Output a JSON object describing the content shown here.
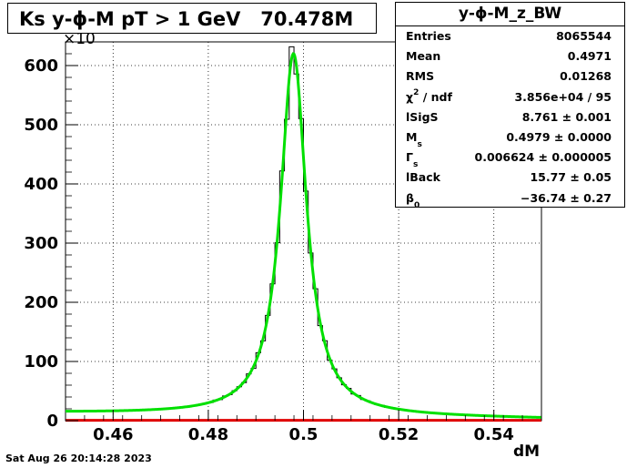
{
  "title": "Ks y-ϕ-M pT > 1 GeV   70.478M",
  "footer_timestamp": "Sat Aug 26 20:14:28 2023",
  "stats": {
    "name": "y-ϕ-M_z_BW",
    "rows": [
      {
        "key": "Entries",
        "value": "8065544"
      },
      {
        "key": "Mean",
        "value": "0.4971"
      },
      {
        "key": "RMS",
        "value": "0.01268"
      },
      {
        "key": "χ",
        "key_sup": "2",
        "key_suffix": " / ndf",
        "value": "3.856e+04 / 95"
      },
      {
        "key": "lSigS",
        "value": "8.761 ± 0.001"
      },
      {
        "key": "M",
        "key_sub": "s",
        "value": "0.4979 ± 0.0000"
      },
      {
        "key": "Γ",
        "key_sub": "s",
        "value": "0.006624 ± 0.000005"
      },
      {
        "key": "lBack",
        "value": "15.77 ± 0.05"
      },
      {
        "key": "β",
        "key_sub": "0",
        "value": "−36.74 ± 0.27"
      }
    ]
  },
  "chart_data": {
    "type": "line",
    "xlabel": "dM",
    "ylabel": "",
    "y_multiplier_label": "×10",
    "xlim": [
      0.45,
      0.55
    ],
    "ylim": [
      0,
      640
    ],
    "x_ticks": [
      0.46,
      0.48,
      0.5,
      0.52,
      0.54
    ],
    "x_tick_labels": [
      "0.46",
      "0.48",
      "0.5",
      "0.52",
      "0.54"
    ],
    "y_ticks": [
      0,
      100,
      200,
      300,
      400,
      500,
      600
    ],
    "y_tick_labels": [
      "0",
      "100",
      "200",
      "300",
      "400",
      "500",
      "600"
    ],
    "grid": true,
    "histogram": {
      "bin_width": 0.001,
      "peak_x": 0.4979,
      "peak_y": 612,
      "gamma": 0.006624,
      "background_left": 13,
      "background_right": 3
    },
    "series": [
      {
        "color": "#000000",
        "style": "step"
      },
      {
        "color": "#00e000",
        "style": "line"
      },
      {
        "color": "#e00000",
        "style": "line"
      }
    ]
  }
}
